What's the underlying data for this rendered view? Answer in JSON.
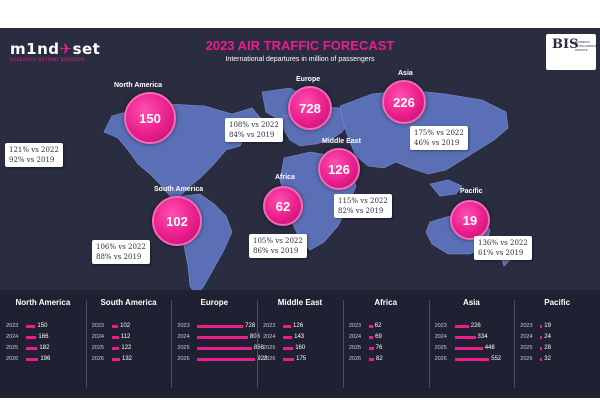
{
  "header": {
    "logo_word_a": "m1nd",
    "logo_word_b": "set",
    "logo_tagline": "RESEARCH BEYOND BORDERS",
    "title": "2023 AIR TRAFFIC FORECAST",
    "subtitle": "International departures in million of passengers",
    "bis_mark": "BIS",
    "bis_caption": "BUSINESS INTELLIGENCE SERVICE"
  },
  "colors": {
    "accent": "#e91e8c",
    "background": "#2a2c40",
    "map": "#5a6fb6",
    "strip": "#1f2031"
  },
  "regions": [
    {
      "key": "north_america",
      "name": "North America",
      "value_2023": "150",
      "vs2022": "121% vs 2022",
      "vs2019": "92% vs 2019"
    },
    {
      "key": "europe",
      "name": "Europe",
      "value_2023": "728",
      "vs2022": "108% vs 2022",
      "vs2019": "84% vs 2019"
    },
    {
      "key": "asia",
      "name": "Asia",
      "value_2023": "226",
      "vs2022": "175% vs 2022",
      "vs2019": "46% vs 2019"
    },
    {
      "key": "middle_east",
      "name": "Middle East",
      "value_2023": "126",
      "vs2022": "115% vs 2022",
      "vs2019": "82% vs 2019"
    },
    {
      "key": "south_america",
      "name": "South America",
      "value_2023": "102",
      "vs2022": "106% vs 2022",
      "vs2019": "88% vs 2019"
    },
    {
      "key": "africa",
      "name": "Africa",
      "value_2023": "62",
      "vs2022": "105% vs 2022",
      "vs2019": "86% vs 2019"
    },
    {
      "key": "pacific",
      "name": "Pacific",
      "value_2023": "19",
      "vs2022": "136% vs 2022",
      "vs2019": "61% vs 2019"
    }
  ],
  "chart_data": {
    "type": "bar",
    "title": "2023 AIR TRAFFIC FORECAST",
    "subtitle": "International departures in million of passengers",
    "categories": [
      "2023",
      "2024",
      "2025",
      "2026"
    ],
    "series": [
      {
        "name": "North America",
        "values": [
          150,
          166,
          182,
          196
        ]
      },
      {
        "name": "South America",
        "values": [
          102,
          112,
          122,
          132
        ]
      },
      {
        "name": "Europe",
        "values": [
          728,
          803,
          866,
          923
        ]
      },
      {
        "name": "Middle East",
        "values": [
          126,
          143,
          160,
          175
        ]
      },
      {
        "name": "Africa",
        "values": [
          62,
          69,
          76,
          82
        ]
      },
      {
        "name": "Asia",
        "values": [
          226,
          334,
          448,
          552
        ]
      },
      {
        "name": "Pacific",
        "values": [
          19,
          24,
          28,
          32
        ]
      }
    ],
    "orientation": "horizontal",
    "xlim": [
      0,
      923
    ]
  }
}
